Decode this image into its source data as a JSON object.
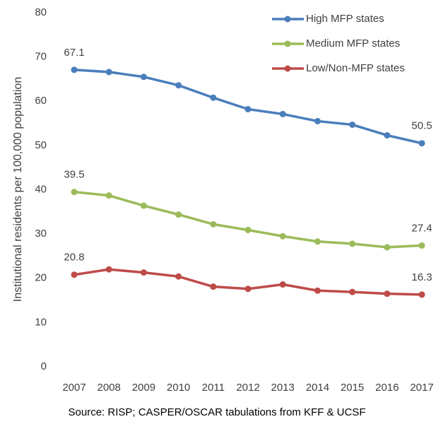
{
  "chart_data": {
    "type": "line",
    "y_label": "Institutional residents per 100,000 population",
    "source": "Source: RISP; CASPER/OSCAR tabulations from KFF & UCSF",
    "categories": [
      "2007",
      "2008",
      "2009",
      "2010",
      "2011",
      "2012",
      "2013",
      "2014",
      "2015",
      "2016",
      "2017"
    ],
    "series": [
      {
        "name": "High MFP states",
        "color": "#4a7ebb",
        "values": [
          67.1,
          66.6,
          65.5,
          63.6,
          60.8,
          58.2,
          57.1,
          55.5,
          54.7,
          52.3,
          50.5
        ],
        "value_labels": [
          "67.1",
          null,
          null,
          null,
          null,
          null,
          null,
          null,
          null,
          null,
          "50.5"
        ]
      },
      {
        "name": "Medium MFP states",
        "color": "#9bbb59",
        "values": [
          39.5,
          38.7,
          36.4,
          34.4,
          32.2,
          30.9,
          29.5,
          28.3,
          27.8,
          27.0,
          27.4
        ],
        "value_labels": [
          "39.5",
          null,
          null,
          null,
          null,
          null,
          null,
          null,
          null,
          null,
          "27.4"
        ]
      },
      {
        "name": "Low/Non-MFP states",
        "color": "#be4b48",
        "values": [
          20.8,
          22.0,
          21.3,
          20.4,
          18.1,
          17.6,
          18.6,
          17.2,
          16.9,
          16.5,
          16.3
        ],
        "value_labels": [
          "20.8",
          null,
          null,
          null,
          null,
          null,
          null,
          null,
          null,
          null,
          "16.3"
        ]
      }
    ],
    "ylim": [
      0,
      80
    ],
    "yticks": [
      0,
      10,
      20,
      30,
      40,
      50,
      60,
      70,
      80
    ],
    "grid": false
  }
}
